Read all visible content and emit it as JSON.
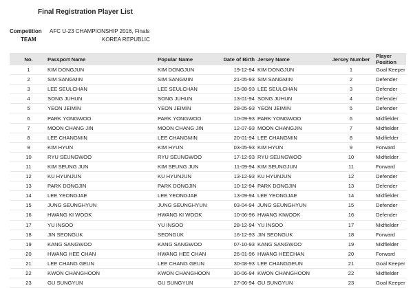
{
  "title": "Final Registration Player List",
  "competition_label": "Competition",
  "competition": "AFC U-23 CHAMPIONSHIP 2016, Finals",
  "team_label": "TEAM",
  "team": "KOREA REPUBLIC",
  "columns": [
    "No.",
    "Passport Name",
    "Popular Name",
    "Date of Birth",
    "Jersey Name",
    "Jersey Number",
    "Player Position"
  ],
  "rows": [
    [
      "1",
      "KIM DONGJUN",
      "KIM DONGJUN",
      "19-12-94",
      "KIM DONGJUN",
      "1",
      "Goal Keeper"
    ],
    [
      "2",
      "SIM SANGMIN",
      "SIM SANGMIN",
      "21-05-93",
      "SIM SANGMIN",
      "2",
      "Defender"
    ],
    [
      "3",
      "LEE SEULCHAN",
      "LEE SEULCHAN",
      "15-08-93",
      "LEE SEULCHAN",
      "3",
      "Defender"
    ],
    [
      "4",
      "SONG JUHUN",
      "SONG JUHUN",
      "13-01-94",
      "SONG JUHUN",
      "4",
      "Defender"
    ],
    [
      "5",
      "YEON JEIMIN",
      "YEON JEIMIN",
      "28-05-93",
      "YEON JEIMIN",
      "5",
      "Defender"
    ],
    [
      "6",
      "PARK YONGWOO",
      "PARK YONGWOO",
      "10-09-93",
      "PARK YONGWOO",
      "6",
      "Midfielder"
    ],
    [
      "7",
      "MOON CHANG JIN",
      "MOON CHANG JIN",
      "12-07-93",
      "MOON CHANGJIN",
      "7",
      "Midfielder"
    ],
    [
      "8",
      "LEE CHANGMIN",
      "LEE CHANGMIN",
      "20-01-94",
      "LEE CHANGMIN",
      "8",
      "Midfielder"
    ],
    [
      "9",
      "KIM HYUN",
      "KIM HYUN",
      "03-05-93",
      "KIM HYUN",
      "9",
      "Forward"
    ],
    [
      "10",
      "RYU SEUNGWOO",
      "RYU SEUNGWOO",
      "17-12-93",
      "RYU SEUNGWOO",
      "10",
      "Midfielder"
    ],
    [
      "11",
      "KIM SEUNG JUN",
      "KIM SEUNG JUN",
      "11-09-94",
      "KIM SEUNGJUN",
      "11",
      "Forward"
    ],
    [
      "12",
      "KU HYUNJUN",
      "KU HYUNJUN",
      "13-12-93",
      "KU HYUNJUN",
      "12",
      "Defender"
    ],
    [
      "13",
      "PARK DONGJIN",
      "PARK DONGJIN",
      "10-12-94",
      "PARK DONGJIN",
      "13",
      "Defender"
    ],
    [
      "14",
      "LEE YEONGJAE",
      "LEE YEONGJAE",
      "13-09-94",
      "LEE YEONGJAE",
      "14",
      "Midfielder"
    ],
    [
      "15",
      "JUNG SEUNGHYUN",
      "JUNG SEUNGHYUN",
      "03-04-94",
      "JUNG SEUNGHYUN",
      "15",
      "Defender"
    ],
    [
      "16",
      "HWANG KI WOOK",
      "HWANG KI WOOK",
      "10-06-96",
      "HWANG KIWOOK",
      "16",
      "Defender"
    ],
    [
      "17",
      "YU INSOO",
      "YU INSOO",
      "28-12-94",
      "YU INSOO",
      "17",
      "Midfielder"
    ],
    [
      "18",
      "JIN SEONGUK",
      "SEONGUK",
      "16-12-93",
      "JIN SEONGUK",
      "18",
      "Forward"
    ],
    [
      "19",
      "KANG SANGWOO",
      "KANG SANGWOO",
      "07-10-93",
      "KANG SANGWOO",
      "19",
      "Midfielder"
    ],
    [
      "20",
      "HWANG HEE CHAN",
      "HWANG HEE CHAN",
      "26-01-96",
      "HWANG HEECHAN",
      "20",
      "Forward"
    ],
    [
      "21",
      "LEE CHANG GEUN",
      "LEE CHANG GEUN",
      "30-08-93",
      "LEE CHANGGEUN",
      "21",
      "Goal Keeper"
    ],
    [
      "22",
      "KWON CHANGHOON",
      "KWON CHANGHOON",
      "30-06-94",
      "KWON CHANGHOON",
      "22",
      "Midfielder"
    ],
    [
      "23",
      "GU SUNGYUN",
      "GU SUNGYUN",
      "27-06-94",
      "GU SUNGYUN",
      "23",
      "Goal Keeper"
    ]
  ]
}
